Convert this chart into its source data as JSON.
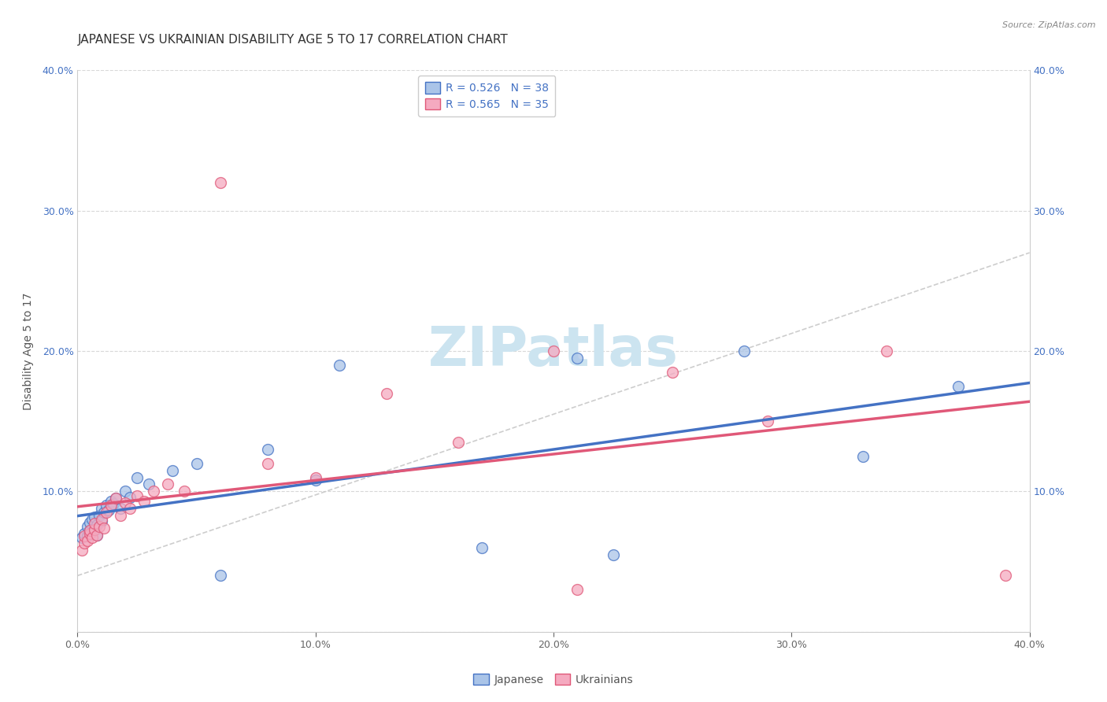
{
  "title": "JAPANESE VS UKRAINIAN DISABILITY AGE 5 TO 17 CORRELATION CHART",
  "source": "Source: ZipAtlas.com",
  "ylabel": "Disability Age 5 to 17",
  "xlim": [
    0.0,
    0.4
  ],
  "ylim": [
    0.0,
    0.4
  ],
  "xticks": [
    0.0,
    0.1,
    0.2,
    0.3,
    0.4
  ],
  "yticks": [
    0.0,
    0.1,
    0.2,
    0.3,
    0.4
  ],
  "xtick_labels": [
    "0.0%",
    "10.0%",
    "20.0%",
    "30.0%",
    "40.0%"
  ],
  "ytick_labels": [
    "",
    "10.0%",
    "20.0%",
    "30.0%",
    "40.0%"
  ],
  "japanese_R": 0.526,
  "japanese_N": 38,
  "ukrainian_R": 0.565,
  "ukrainian_N": 35,
  "japanese_color": "#aac4e8",
  "ukrainian_color": "#f5aac0",
  "japanese_line_color": "#4472c4",
  "ukrainian_line_color": "#e05878",
  "dashed_line_color": "#c8c8c8",
  "background_color": "#ffffff",
  "grid_color": "#d8d8d8",
  "watermark_text": "ZIPatlas",
  "watermark_color": "#cce4f0",
  "japanese_x": [
    0.002,
    0.003,
    0.004,
    0.004,
    0.005,
    0.005,
    0.006,
    0.006,
    0.007,
    0.007,
    0.008,
    0.008,
    0.009,
    0.01,
    0.01,
    0.011,
    0.012,
    0.013,
    0.014,
    0.015,
    0.016,
    0.018,
    0.02,
    0.022,
    0.025,
    0.03,
    0.04,
    0.05,
    0.06,
    0.08,
    0.1,
    0.11,
    0.17,
    0.21,
    0.225,
    0.28,
    0.33,
    0.37
  ],
  "japanese_y": [
    0.067,
    0.07,
    0.068,
    0.075,
    0.072,
    0.078,
    0.071,
    0.08,
    0.073,
    0.082,
    0.069,
    0.076,
    0.083,
    0.079,
    0.088,
    0.085,
    0.09,
    0.087,
    0.093,
    0.091,
    0.095,
    0.088,
    0.1,
    0.096,
    0.11,
    0.105,
    0.115,
    0.12,
    0.04,
    0.13,
    0.108,
    0.19,
    0.06,
    0.195,
    0.055,
    0.2,
    0.125,
    0.175
  ],
  "ukrainian_x": [
    0.002,
    0.003,
    0.003,
    0.004,
    0.005,
    0.005,
    0.006,
    0.007,
    0.007,
    0.008,
    0.009,
    0.01,
    0.011,
    0.012,
    0.014,
    0.016,
    0.018,
    0.02,
    0.022,
    0.025,
    0.028,
    0.032,
    0.038,
    0.045,
    0.06,
    0.08,
    0.1,
    0.13,
    0.16,
    0.2,
    0.21,
    0.25,
    0.29,
    0.34,
    0.39
  ],
  "ukrainian_y": [
    0.058,
    0.063,
    0.068,
    0.065,
    0.07,
    0.072,
    0.067,
    0.073,
    0.077,
    0.069,
    0.075,
    0.08,
    0.074,
    0.085,
    0.09,
    0.095,
    0.083,
    0.092,
    0.088,
    0.097,
    0.093,
    0.1,
    0.105,
    0.1,
    0.32,
    0.12,
    0.11,
    0.17,
    0.135,
    0.2,
    0.03,
    0.185,
    0.15,
    0.2,
    0.04
  ],
  "title_fontsize": 11,
  "axis_label_fontsize": 10,
  "tick_fontsize": 9,
  "legend_fontsize": 10,
  "marker_size": 100,
  "line_width": 2.5
}
